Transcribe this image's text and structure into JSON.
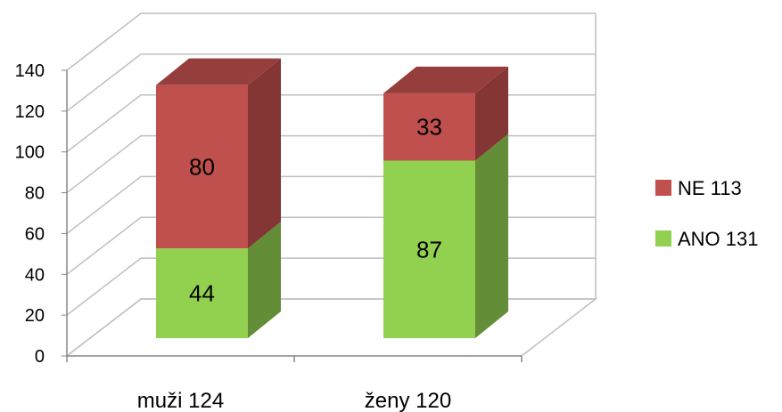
{
  "chart_data": {
    "type": "bar",
    "stacked": true,
    "style": "3d-column",
    "categories": [
      "muži 124",
      "ženy 120"
    ],
    "series": [
      {
        "name": "ANO 131",
        "values": [
          44,
          87
        ],
        "color": "#92D050"
      },
      {
        "name": "NE 113",
        "values": [
          80,
          33
        ],
        "color": "#C0504D"
      }
    ],
    "ylim": [
      0,
      140
    ],
    "yticks": [
      "0",
      "20",
      "40",
      "60",
      "80",
      "100",
      "120",
      "140"
    ],
    "grid": true,
    "legend": "right"
  }
}
